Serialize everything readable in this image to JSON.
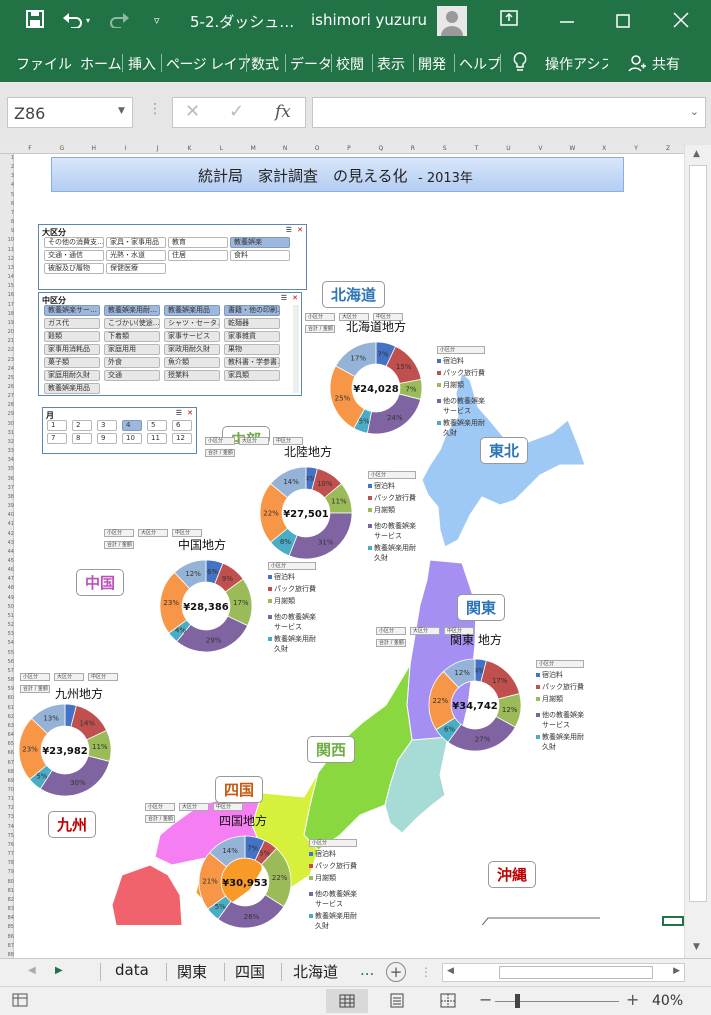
{
  "title_bar": {
    "file_title": "5-2.ダッシュ…",
    "user": "ishimori yuzuru"
  },
  "ribbon": {
    "tabs": [
      "ファイル",
      "ホーム",
      "挿入",
      "ページ レイア",
      "数式",
      "データ",
      "校閲",
      "表示",
      "開発",
      "ヘルプ"
    ],
    "tell_me": "操作アシス",
    "share": "共有"
  },
  "formula_bar": {
    "name_box": "Z86",
    "fx": "fx",
    "value": ""
  },
  "sheet": {
    "title": "統計局　家計調査　の見える化",
    "year": "- 2013年",
    "columns": [
      "F",
      "G",
      "H",
      "I",
      "J",
      "K",
      "L",
      "M",
      "N",
      "O",
      "P",
      "Q",
      "R",
      "S",
      "T",
      "U",
      "V",
      "W",
      "X",
      "Y",
      "Z"
    ],
    "row_start": 1,
    "row_end": 88,
    "slicer_major": {
      "header": "大区分",
      "items": [
        "その他の消費支…",
        "家具・家事用品",
        "教育",
        "教養娯楽",
        "交通・通信",
        "光熱・水道",
        "住居",
        "食料",
        "被服及び履物",
        "保健医療"
      ],
      "selected": "教養娯楽"
    },
    "slicer_middle": {
      "header": "中区分",
      "items": [
        "教養娯楽サー…",
        "教養娯楽用耐…",
        "教養娯楽用品",
        "書籍・他の印刷…",
        "ガス代",
        "こづかい(使途…",
        "シャツ・セータ…",
        "乾麺器",
        "穀類",
        "下着類",
        "家事サービス",
        "家事雑貨",
        "家事用消耗品",
        "家庭用用",
        "家政用耐久財",
        "果物",
        "菓子類",
        "外食",
        "魚介類",
        "教科書・学参書…",
        "家庭用耐久財",
        "交通",
        "授業料",
        "家具類",
        "教養娯楽用品"
      ]
    },
    "slicer_month": {
      "header": "月",
      "items": [
        "1",
        "2",
        "3",
        "4",
        "5",
        "6",
        "7",
        "8",
        "9",
        "10",
        "11",
        "12"
      ],
      "selected": "4"
    },
    "filter_labels": [
      "小区分",
      "大区分",
      "中区分",
      "合計 / 金額"
    ],
    "regions": [
      {
        "name": "北海道",
        "color": "#2e75b6"
      },
      {
        "name": "東北",
        "color": "#2e75b6"
      },
      {
        "name": "中部",
        "color": "#70ad47"
      },
      {
        "name": "関東",
        "color": "#2e75b6"
      },
      {
        "name": "中国",
        "color": "#c050c0"
      },
      {
        "name": "関西",
        "color": "#70ad47"
      },
      {
        "name": "四国",
        "color": "#c55a11"
      },
      {
        "name": "九州",
        "color": "#c00000"
      },
      {
        "name": "沖縄",
        "color": "#c00000"
      }
    ],
    "legend_items": [
      "宿泊料",
      "パック旅行費",
      "月謝類",
      "他の教養娯楽サービス",
      "教養娯楽用耐久財"
    ],
    "legend_header": "小区分",
    "colors": {
      "s1": "#4472c4",
      "s2": "#c0504d",
      "s3": "#9bbb59",
      "s4": "#8064a2",
      "s5": "#4bacc6",
      "s6": "#f79646",
      "s7": "#95b3d7"
    }
  },
  "chart_data": [
    {
      "type": "pie",
      "title": "北海道地方",
      "center_label": "¥24,028",
      "legend": "小区分",
      "values": [
        7,
        15,
        7,
        24,
        5,
        25,
        17
      ],
      "labels": [
        "",
        "15%",
        "7%",
        "24%",
        "5%",
        "25%",
        "17%"
      ],
      "extra_label": "7%"
    },
    {
      "type": "pie",
      "title": "北陸地方",
      "center_label": "¥27,501",
      "values": [
        4,
        10,
        11,
        31,
        8,
        22,
        14
      ],
      "labels": [
        "4%",
        "10%",
        "11%",
        "31%",
        "8%",
        "22%",
        "14%"
      ]
    },
    {
      "type": "pie",
      "title": "中国地方",
      "center_label": "¥28,386",
      "values": [
        6,
        9,
        17,
        29,
        4,
        23,
        12
      ],
      "labels": [
        "6%",
        "9%",
        "17%",
        "29%",
        "4%",
        "23%",
        "12%"
      ]
    },
    {
      "type": "pie",
      "title": "関東 地方",
      "center_label": "¥34,742",
      "values": [
        4,
        17,
        12,
        27,
        6,
        22,
        12
      ],
      "labels": [
        "4%",
        "17%",
        "12%",
        "27%",
        "6%",
        "22%",
        "12%"
      ]
    },
    {
      "type": "pie",
      "title": "九州地方",
      "center_label": "¥23,982",
      "values": [
        4,
        14,
        11,
        30,
        5,
        23,
        13
      ],
      "labels": [
        "",
        "14%",
        "11%",
        "30%",
        "5%",
        "23%",
        "13%"
      ]
    },
    {
      "type": "pie",
      "title": "四国地方",
      "center_label": "¥30,953",
      "values": [
        7,
        5,
        22,
        26,
        5,
        21,
        14
      ],
      "labels": [
        "7%",
        "5%",
        "22%",
        "26%",
        "5%",
        "21%",
        "14%"
      ]
    }
  ],
  "sheet_tabs": [
    "data",
    "関東",
    "四国",
    "北海道",
    "..."
  ],
  "status": {
    "zoom": "40%"
  }
}
